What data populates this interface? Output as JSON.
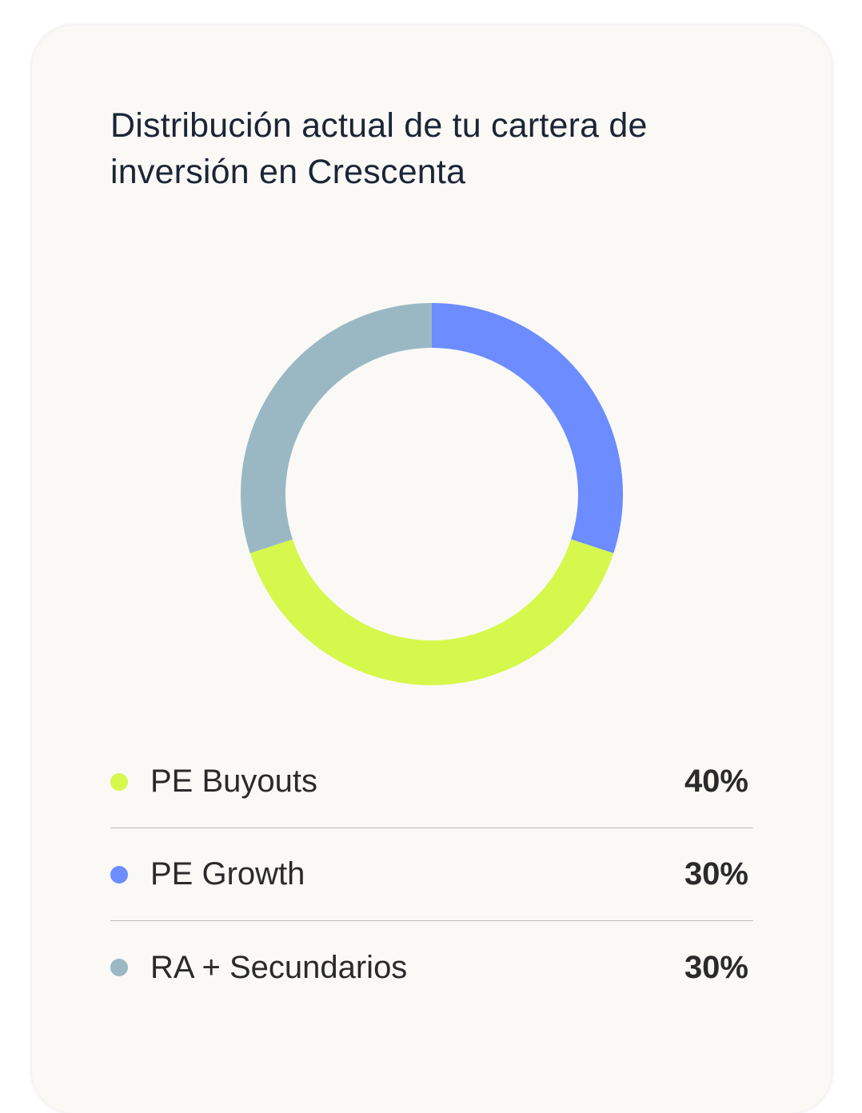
{
  "card": {
    "title": "Distribución actual de tu cartera de inversión en Crescenta"
  },
  "chart_data": {
    "type": "pie",
    "style": "donut",
    "categories": [
      "PE Buyouts",
      "PE Growth",
      "RA + Secundarios"
    ],
    "values": [
      40,
      30,
      30
    ],
    "labels": [
      "40%",
      "30%",
      "30%"
    ],
    "colors": [
      "#d6f84c",
      "#6c8cff",
      "#9ab8c4"
    ],
    "title": "Distribución actual de tu cartera de inversión en Crescenta",
    "legend_position": "bottom"
  },
  "legend": [
    {
      "label": "PE Buyouts",
      "value": "40%",
      "color": "#d6f84c"
    },
    {
      "label": "PE Growth",
      "value": "30%",
      "color": "#6c8cff"
    },
    {
      "label": "RA + Secundarios",
      "value": "30%",
      "color": "#9ab8c4"
    }
  ]
}
